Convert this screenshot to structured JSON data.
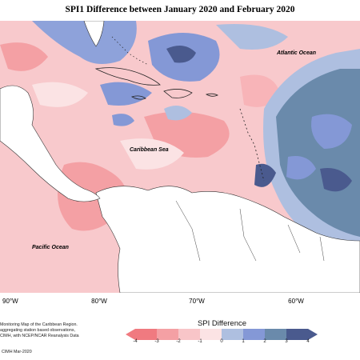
{
  "title": "SPI1 Difference between January 2020 and February 2020",
  "labels": {
    "atlantic": "Atlantic Ocean",
    "caribbean": "Caribbean Sea",
    "pacific": "Pacific Ocean"
  },
  "lon_ticks": [
    "90°W",
    "80°W",
    "70°W",
    "60°W"
  ],
  "footer_note": [
    "Monitoring Map of the Caribbean Region.",
    "aggregating station based observations,",
    "CIMH, with NCEP/NCAR Reanalysis Data"
  ],
  "footer_copy": "CIMH Mar-2020",
  "legend": {
    "title": "SPI Difference",
    "ticks": [
      "-4",
      "-3",
      "-2",
      "-1",
      "0",
      "1",
      "2",
      "3",
      "4"
    ],
    "colors": [
      "#f07a80",
      "#f4a0a4",
      "#f8c5c8",
      "#fbe3e4",
      "#e8ecef",
      "#aebfe0",
      "#8498d6",
      "#6a8aab",
      "#4a5a8e"
    ]
  }
}
